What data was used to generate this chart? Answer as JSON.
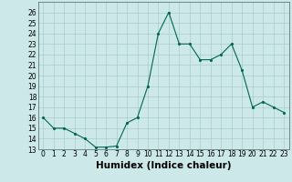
{
  "xlabel": "Humidex (Indice chaleur)",
  "ylabel": "",
  "x": [
    0,
    1,
    2,
    3,
    4,
    5,
    6,
    7,
    8,
    9,
    10,
    11,
    12,
    13,
    14,
    15,
    16,
    17,
    18,
    19,
    20,
    21,
    22,
    23
  ],
  "y": [
    16,
    15,
    15,
    14.5,
    14,
    13.2,
    13.2,
    13.3,
    15.5,
    16,
    19,
    24,
    26,
    23,
    23,
    21.5,
    21.5,
    22,
    23,
    20.5,
    17,
    17.5,
    17,
    16.5
  ],
  "line_color": "#006655",
  "marker_color": "#006655",
  "bg_color": "#cce8e8",
  "grid_color": "#aacccc",
  "ylim": [
    13,
    27
  ],
  "xlim": [
    -0.5,
    23.5
  ],
  "yticks": [
    13,
    14,
    15,
    16,
    17,
    18,
    19,
    20,
    21,
    22,
    23,
    24,
    25,
    26
  ],
  "xticks": [
    0,
    1,
    2,
    3,
    4,
    5,
    6,
    7,
    8,
    9,
    10,
    11,
    12,
    13,
    14,
    15,
    16,
    17,
    18,
    19,
    20,
    21,
    22,
    23
  ],
  "tick_fontsize": 5.5,
  "label_fontsize": 7.5
}
